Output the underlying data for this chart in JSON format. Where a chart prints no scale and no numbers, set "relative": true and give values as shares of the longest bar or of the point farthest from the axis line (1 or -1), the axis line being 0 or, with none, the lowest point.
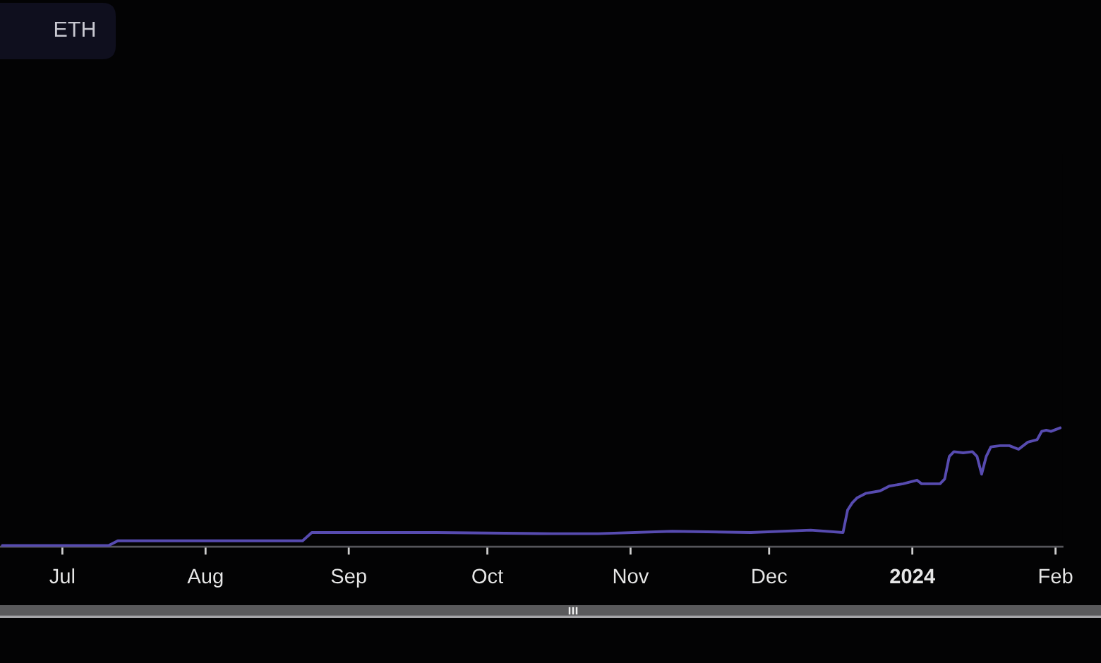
{
  "chart_data": {
    "type": "line",
    "relative": true,
    "x": [
      "2023-06-18",
      "2023-07-11",
      "2023-07-13",
      "2023-08-22",
      "2023-08-24",
      "2023-09-20",
      "2023-10-15",
      "2023-10-25",
      "2023-11-10",
      "2023-11-27",
      "2023-12-10",
      "2023-12-17",
      "2023-12-18",
      "2023-12-19",
      "2023-12-20",
      "2023-12-22",
      "2023-12-25",
      "2023-12-27",
      "2023-12-30",
      "2024-01-02",
      "2024-01-03",
      "2024-01-07",
      "2024-01-08",
      "2024-01-09",
      "2024-01-10",
      "2024-01-12",
      "2024-01-14",
      "2024-01-15",
      "2024-01-16",
      "2024-01-17",
      "2024-01-18",
      "2024-01-20",
      "2024-01-22",
      "2024-01-24",
      "2024-01-26",
      "2024-01-28",
      "2024-01-29",
      "2024-01-30",
      "2024-01-31",
      "2024-02-02"
    ],
    "values": [
      0.01,
      0.01,
      0.05,
      0.05,
      0.12,
      0.12,
      0.11,
      0.11,
      0.13,
      0.12,
      0.14,
      0.12,
      0.31,
      0.37,
      0.41,
      0.45,
      0.47,
      0.51,
      0.53,
      0.56,
      0.53,
      0.53,
      0.57,
      0.76,
      0.8,
      0.79,
      0.8,
      0.76,
      0.61,
      0.76,
      0.84,
      0.85,
      0.85,
      0.82,
      0.88,
      0.9,
      0.97,
      0.98,
      0.97,
      1.0
    ],
    "color": "#574bb0",
    "xlim": [
      "2023-06-17T12:00",
      "2024-02-02T12:00"
    ],
    "xticks": [
      {
        "value": "2023-07-01",
        "label": "Jul"
      },
      {
        "value": "2023-08-01",
        "label": "Aug"
      },
      {
        "value": "2023-09-01",
        "label": "Sep"
      },
      {
        "value": "2023-10-01",
        "label": "Oct"
      },
      {
        "value": "2023-11-01",
        "label": "Nov"
      },
      {
        "value": "2023-12-01",
        "label": "Dec"
      },
      {
        "value": "2024-01-01",
        "label": "2024"
      },
      {
        "value": "2024-02-01",
        "label": "Feb"
      }
    ],
    "annotations": [
      "ETH"
    ]
  }
}
